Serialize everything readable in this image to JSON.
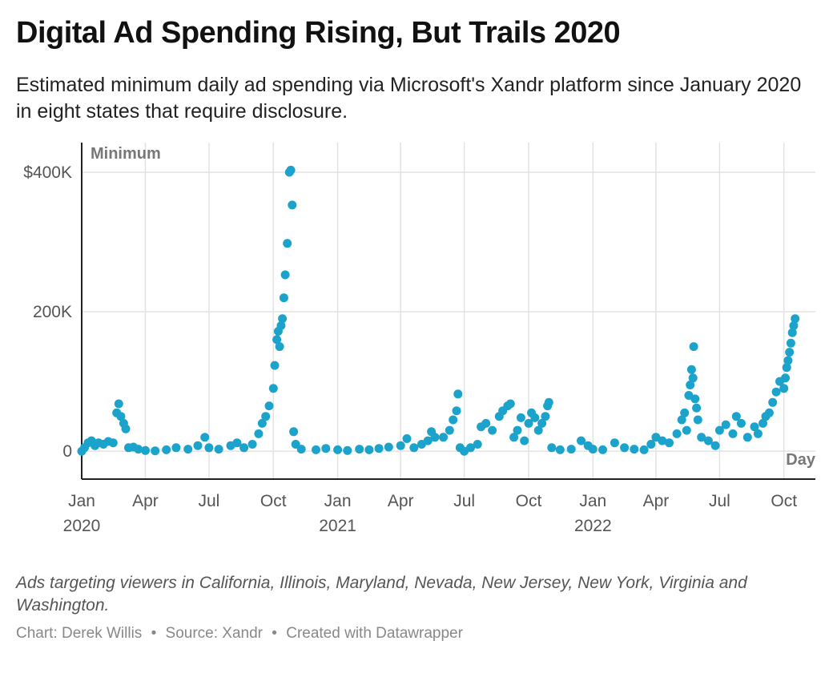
{
  "title": "Digital Ad Spending Rising, But Trails 2020",
  "subtitle": "Estimated minimum daily ad spending via Microsoft's Xandr platform since January 2020 in eight states that require disclosure.",
  "notes": "Ads targeting viewers in California, Illinois, Maryland, Nevada, New Jersey, New York, Virginia and Washington.",
  "byline": {
    "chart": "Chart: Derek Willis",
    "sep1": "•",
    "source": "Source: Xandr",
    "sep2": "•",
    "created": "Created with Datawrapper"
  },
  "colors": {
    "dots": "#1ba3cc",
    "grid": "#e2e2e2",
    "axis": "#222222"
  },
  "chart_data": {
    "type": "scatter",
    "title": "Digital Ad Spending Rising, But Trails 2020",
    "ylabel": "Minimum",
    "xlabel": "Day",
    "ylim": [
      -40000,
      400000
    ],
    "xlim": [
      "2020-01-01",
      "2022-11-15"
    ],
    "yticks": [
      {
        "value": 0,
        "label": "0"
      },
      {
        "value": 200000,
        "label": "200K"
      },
      {
        "value": 400000,
        "label": "$400K"
      }
    ],
    "xticks": [
      {
        "date": "2020-01-01",
        "label": "Jan",
        "year": "2020"
      },
      {
        "date": "2020-04-01",
        "label": "Apr",
        "year": ""
      },
      {
        "date": "2020-07-01",
        "label": "Jul",
        "year": ""
      },
      {
        "date": "2020-10-01",
        "label": "Oct",
        "year": ""
      },
      {
        "date": "2021-01-01",
        "label": "Jan",
        "year": "2021"
      },
      {
        "date": "2021-04-01",
        "label": "Apr",
        "year": ""
      },
      {
        "date": "2021-07-01",
        "label": "Jul",
        "year": ""
      },
      {
        "date": "2021-10-01",
        "label": "Oct",
        "year": ""
      },
      {
        "date": "2022-01-01",
        "label": "Jan",
        "year": "2022"
      },
      {
        "date": "2022-04-01",
        "label": "Apr",
        "year": ""
      },
      {
        "date": "2022-07-01",
        "label": "Jul",
        "year": ""
      },
      {
        "date": "2022-10-01",
        "label": "Oct",
        "year": ""
      }
    ],
    "grid": true,
    "series": [
      {
        "points": [
          [
            "2020-01-01",
            0
          ],
          [
            "2020-01-05",
            5000
          ],
          [
            "2020-01-10",
            12000
          ],
          [
            "2020-01-15",
            15000
          ],
          [
            "2020-01-20",
            8000
          ],
          [
            "2020-01-25",
            12000
          ],
          [
            "2020-02-01",
            10000
          ],
          [
            "2020-02-08",
            14000
          ],
          [
            "2020-02-15",
            12000
          ],
          [
            "2020-02-20",
            55000
          ],
          [
            "2020-02-23",
            68000
          ],
          [
            "2020-02-26",
            50000
          ],
          [
            "2020-03-01",
            40000
          ],
          [
            "2020-03-04",
            32000
          ],
          [
            "2020-03-08",
            5000
          ],
          [
            "2020-03-15",
            6000
          ],
          [
            "2020-03-22",
            3000
          ],
          [
            "2020-04-01",
            1000
          ],
          [
            "2020-04-15",
            500
          ],
          [
            "2020-05-01",
            2000
          ],
          [
            "2020-05-15",
            5000
          ],
          [
            "2020-06-01",
            3000
          ],
          [
            "2020-06-15",
            8000
          ],
          [
            "2020-06-25",
            20000
          ],
          [
            "2020-07-01",
            5000
          ],
          [
            "2020-07-15",
            3000
          ],
          [
            "2020-08-01",
            8000
          ],
          [
            "2020-08-10",
            12000
          ],
          [
            "2020-08-20",
            5000
          ],
          [
            "2020-09-01",
            10000
          ],
          [
            "2020-09-10",
            25000
          ],
          [
            "2020-09-15",
            40000
          ],
          [
            "2020-09-20",
            50000
          ],
          [
            "2020-09-25",
            65000
          ],
          [
            "2020-10-01",
            90000
          ],
          [
            "2020-10-03",
            123000
          ],
          [
            "2020-10-06",
            160000
          ],
          [
            "2020-10-08",
            172000
          ],
          [
            "2020-10-10",
            150000
          ],
          [
            "2020-10-12",
            180000
          ],
          [
            "2020-10-14",
            190000
          ],
          [
            "2020-10-16",
            220000
          ],
          [
            "2020-10-18",
            253000
          ],
          [
            "2020-10-21",
            298000
          ],
          [
            "2020-10-24",
            400000
          ],
          [
            "2020-10-26",
            403000
          ],
          [
            "2020-10-28",
            353000
          ],
          [
            "2020-10-30",
            28000
          ],
          [
            "2020-11-02",
            10000
          ],
          [
            "2020-11-10",
            3000
          ],
          [
            "2020-12-01",
            2000
          ],
          [
            "2020-12-15",
            4000
          ],
          [
            "2021-01-01",
            2000
          ],
          [
            "2021-01-15",
            1000
          ],
          [
            "2021-02-01",
            3000
          ],
          [
            "2021-02-15",
            2000
          ],
          [
            "2021-03-01",
            4000
          ],
          [
            "2021-03-15",
            6000
          ],
          [
            "2021-04-01",
            8000
          ],
          [
            "2021-04-10",
            18000
          ],
          [
            "2021-04-20",
            5000
          ],
          [
            "2021-05-01",
            10000
          ],
          [
            "2021-05-10",
            15000
          ],
          [
            "2021-05-15",
            28000
          ],
          [
            "2021-05-20",
            20000
          ],
          [
            "2021-06-01",
            20000
          ],
          [
            "2021-06-10",
            30000
          ],
          [
            "2021-06-15",
            45000
          ],
          [
            "2021-06-20",
            58000
          ],
          [
            "2021-06-22",
            82000
          ],
          [
            "2021-06-25",
            5000
          ],
          [
            "2021-07-01",
            0
          ],
          [
            "2021-07-10",
            5000
          ],
          [
            "2021-07-20",
            10000
          ],
          [
            "2021-07-25",
            35000
          ],
          [
            "2021-08-01",
            40000
          ],
          [
            "2021-08-10",
            30000
          ],
          [
            "2021-08-20",
            50000
          ],
          [
            "2021-08-25",
            58000
          ],
          [
            "2021-09-01",
            65000
          ],
          [
            "2021-09-05",
            68000
          ],
          [
            "2021-09-10",
            20000
          ],
          [
            "2021-09-15",
            30000
          ],
          [
            "2021-09-20",
            48000
          ],
          [
            "2021-09-25",
            15000
          ],
          [
            "2021-10-01",
            40000
          ],
          [
            "2021-10-05",
            55000
          ],
          [
            "2021-10-10",
            48000
          ],
          [
            "2021-10-15",
            30000
          ],
          [
            "2021-10-20",
            40000
          ],
          [
            "2021-10-25",
            50000
          ],
          [
            "2021-10-28",
            65000
          ],
          [
            "2021-10-30",
            70000
          ],
          [
            "2021-11-03",
            5000
          ],
          [
            "2021-11-15",
            2000
          ],
          [
            "2021-12-01",
            3000
          ],
          [
            "2021-12-15",
            15000
          ],
          [
            "2021-12-25",
            8000
          ],
          [
            "2022-01-01",
            3000
          ],
          [
            "2022-01-15",
            2000
          ],
          [
            "2022-02-01",
            12000
          ],
          [
            "2022-02-15",
            5000
          ],
          [
            "2022-03-01",
            3000
          ],
          [
            "2022-03-15",
            2000
          ],
          [
            "2022-03-25",
            10000
          ],
          [
            "2022-04-01",
            20000
          ],
          [
            "2022-04-10",
            15000
          ],
          [
            "2022-04-20",
            12000
          ],
          [
            "2022-05-01",
            25000
          ],
          [
            "2022-05-08",
            45000
          ],
          [
            "2022-05-12",
            55000
          ],
          [
            "2022-05-15",
            30000
          ],
          [
            "2022-05-18",
            80000
          ],
          [
            "2022-05-20",
            95000
          ],
          [
            "2022-05-22",
            117000
          ],
          [
            "2022-05-24",
            105000
          ],
          [
            "2022-05-25",
            150000
          ],
          [
            "2022-05-27",
            75000
          ],
          [
            "2022-05-29",
            62000
          ],
          [
            "2022-05-31",
            45000
          ],
          [
            "2022-06-05",
            20000
          ],
          [
            "2022-06-15",
            15000
          ],
          [
            "2022-06-25",
            8000
          ],
          [
            "2022-07-01",
            30000
          ],
          [
            "2022-07-10",
            38000
          ],
          [
            "2022-07-20",
            25000
          ],
          [
            "2022-07-25",
            50000
          ],
          [
            "2022-08-01",
            40000
          ],
          [
            "2022-08-10",
            20000
          ],
          [
            "2022-08-20",
            35000
          ],
          [
            "2022-08-25",
            25000
          ],
          [
            "2022-09-01",
            40000
          ],
          [
            "2022-09-05",
            50000
          ],
          [
            "2022-09-10",
            55000
          ],
          [
            "2022-09-15",
            70000
          ],
          [
            "2022-09-20",
            85000
          ],
          [
            "2022-09-25",
            100000
          ],
          [
            "2022-10-01",
            90000
          ],
          [
            "2022-10-03",
            105000
          ],
          [
            "2022-10-05",
            120000
          ],
          [
            "2022-10-07",
            130000
          ],
          [
            "2022-10-09",
            142000
          ],
          [
            "2022-10-11",
            155000
          ],
          [
            "2022-10-13",
            170000
          ],
          [
            "2022-10-15",
            180000
          ],
          [
            "2022-10-17",
            190000
          ]
        ]
      }
    ]
  }
}
